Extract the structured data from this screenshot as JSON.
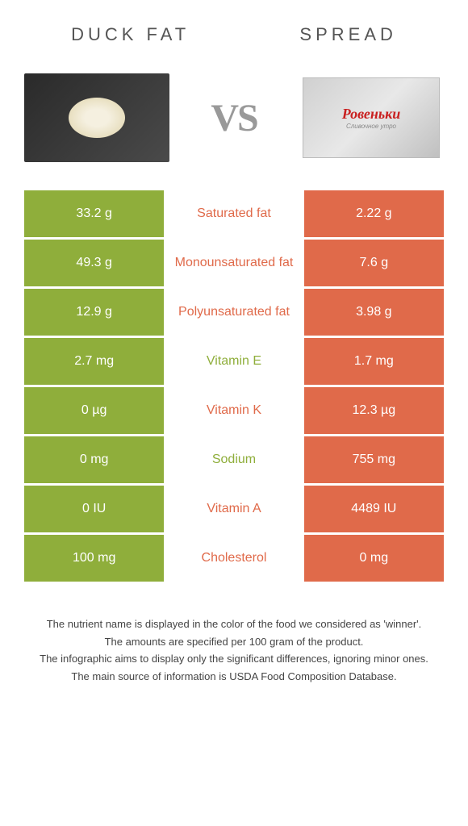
{
  "colors": {
    "left": "#8fae3b",
    "right": "#e06a4a",
    "left_text": "#8fae3b",
    "right_text": "#e06a4a"
  },
  "header": {
    "left_title": "DUCK FAT",
    "right_title": "SPREAD",
    "vs": "VS"
  },
  "spread_package": {
    "brand": "Ровеньки",
    "subtitle": "Сливочное утро"
  },
  "rows": [
    {
      "left": "33.2 g",
      "label": "Saturated fat",
      "right": "2.22 g",
      "winner": "right"
    },
    {
      "left": "49.3 g",
      "label": "Monounsaturated fat",
      "right": "7.6 g",
      "winner": "right"
    },
    {
      "left": "12.9 g",
      "label": "Polyunsaturated fat",
      "right": "3.98 g",
      "winner": "right"
    },
    {
      "left": "2.7 mg",
      "label": "Vitamin E",
      "right": "1.7 mg",
      "winner": "left"
    },
    {
      "left": "0 µg",
      "label": "Vitamin K",
      "right": "12.3 µg",
      "winner": "right"
    },
    {
      "left": "0 mg",
      "label": "Sodium",
      "right": "755 mg",
      "winner": "left"
    },
    {
      "left": "0 IU",
      "label": "Vitamin A",
      "right": "4489 IU",
      "winner": "right"
    },
    {
      "left": "100 mg",
      "label": "Cholesterol",
      "right": "0 mg",
      "winner": "right"
    }
  ],
  "footer": {
    "line1": "The nutrient name is displayed in the color of the food we considered as 'winner'.",
    "line2": "The amounts are specified per 100 gram of the product.",
    "line3": "The infographic aims to display only the significant differences, ignoring minor ones.",
    "line4": "The main source of information is USDA Food Composition Database."
  }
}
